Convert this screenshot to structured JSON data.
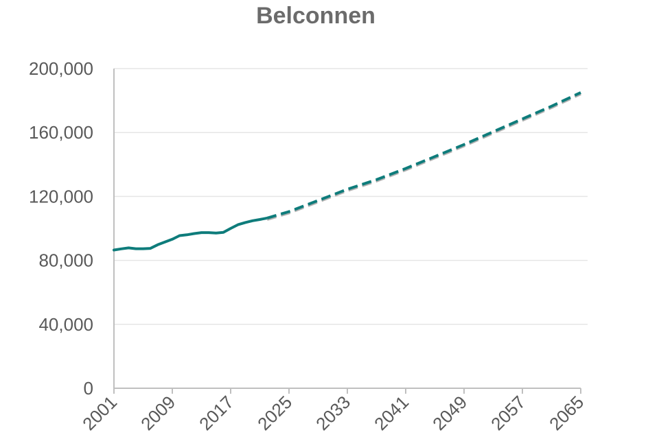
{
  "chart_data": {
    "type": "line",
    "title": "Belconnen",
    "xlabel": "",
    "ylabel": "",
    "xlim": [
      2001,
      2065
    ],
    "ylim": [
      0,
      200000
    ],
    "yticks": [
      0,
      40000,
      80000,
      120000,
      160000,
      200000
    ],
    "ytick_labels": [
      "0",
      "40,000",
      "80,000",
      "120,000",
      "160,000",
      "200,000"
    ],
    "xticks": [
      2001,
      2009,
      2017,
      2025,
      2033,
      2041,
      2049,
      2057,
      2065
    ],
    "xtick_labels": [
      "2001",
      "2009",
      "2017",
      "2025",
      "2033",
      "2041",
      "2049",
      "2057",
      "2065"
    ],
    "grid": true,
    "legend": "none",
    "colors": {
      "historical": "#0e7c7b",
      "projection": "#0e7c7b",
      "projection_shadow": "#9e9e9e"
    },
    "series": [
      {
        "style": "solid",
        "x": [
          2001,
          2002,
          2003,
          2004,
          2005,
          2006,
          2007,
          2008,
          2009,
          2010,
          2011,
          2012,
          2013,
          2014,
          2015,
          2016,
          2017,
          2018,
          2019,
          2020,
          2021,
          2022
        ],
        "values": [
          86500,
          87200,
          87800,
          87300,
          87300,
          87500,
          89800,
          91500,
          93200,
          95500,
          96000,
          96800,
          97400,
          97400,
          97100,
          97500,
          100000,
          102300,
          103700,
          104800,
          105600,
          106500
        ]
      },
      {
        "style": "dashed",
        "x": [
          2022,
          2025,
          2029,
          2033,
          2037,
          2041,
          2045,
          2049,
          2053,
          2057,
          2061,
          2065
        ],
        "values": [
          106500,
          110500,
          117500,
          124500,
          130500,
          137500,
          145000,
          152500,
          160500,
          168500,
          176500,
          185000
        ]
      }
    ]
  }
}
